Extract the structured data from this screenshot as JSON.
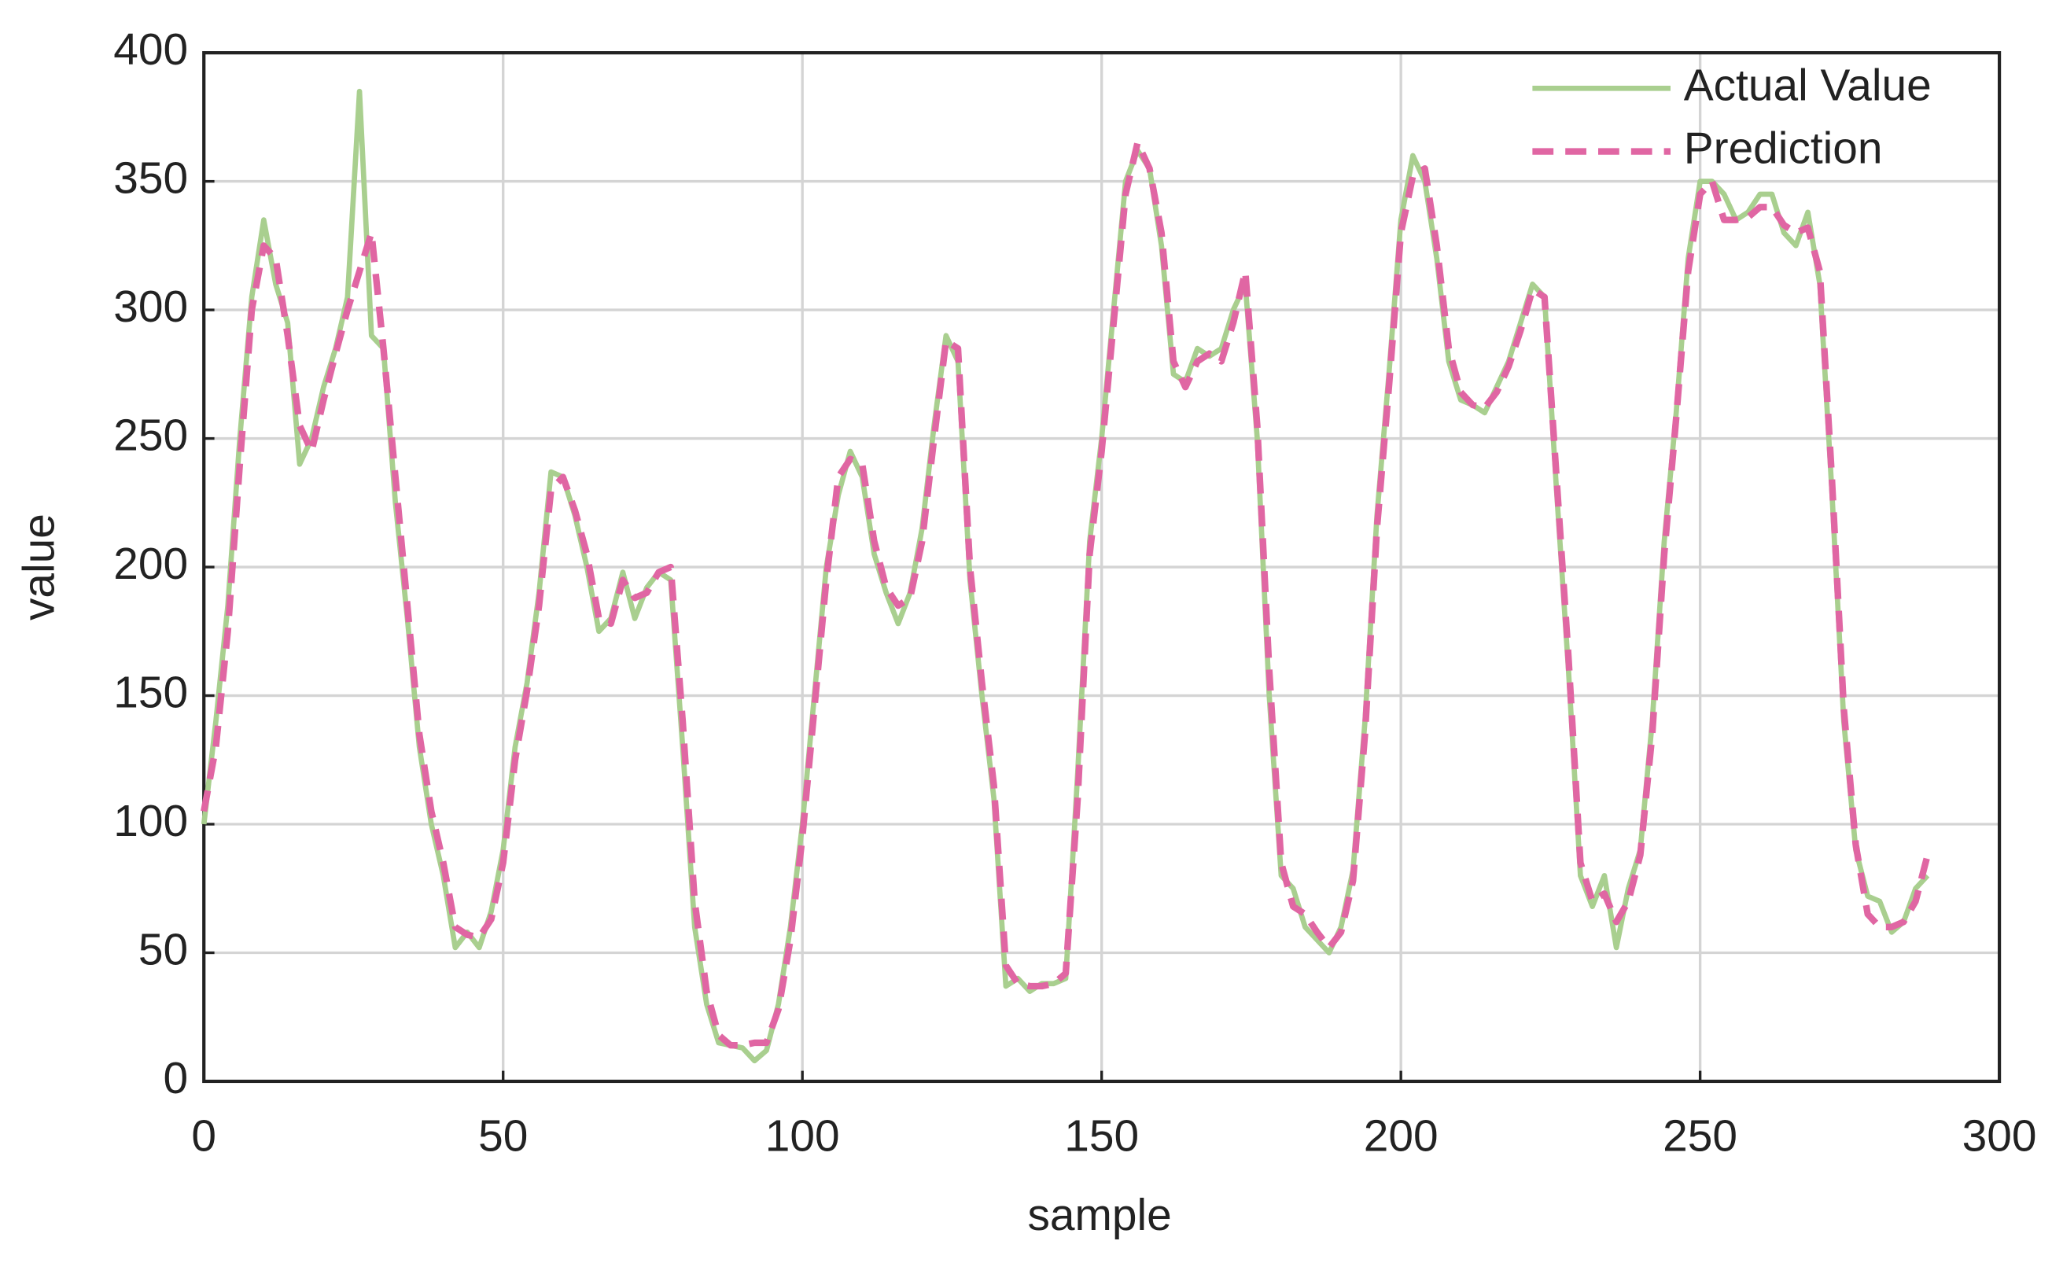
{
  "chart_data": {
    "type": "line",
    "xlabel": "sample",
    "ylabel": "value",
    "x": [
      0,
      2,
      4,
      6,
      8,
      10,
      12,
      14,
      16,
      18,
      20,
      22,
      24,
      26,
      28,
      30,
      32,
      34,
      36,
      38,
      40,
      42,
      44,
      46,
      48,
      50,
      52,
      54,
      56,
      58,
      60,
      62,
      64,
      66,
      68,
      70,
      72,
      74,
      76,
      78,
      80,
      82,
      84,
      86,
      88,
      90,
      92,
      94,
      96,
      98,
      100,
      102,
      104,
      106,
      108,
      110,
      112,
      114,
      116,
      118,
      120,
      122,
      124,
      126,
      128,
      130,
      132,
      134,
      136,
      138,
      140,
      142,
      144,
      146,
      148,
      150,
      152,
      154,
      156,
      158,
      160,
      162,
      164,
      166,
      168,
      170,
      172,
      174,
      176,
      178,
      180,
      182,
      184,
      186,
      188,
      190,
      192,
      194,
      196,
      198,
      200,
      202,
      204,
      206,
      208,
      210,
      212,
      214,
      216,
      218,
      220,
      222,
      224,
      226,
      228,
      230,
      232,
      234,
      236,
      238,
      240,
      242,
      244,
      246,
      248,
      250,
      252,
      254,
      256,
      258,
      260,
      262,
      264,
      266,
      268,
      270,
      272,
      274,
      276,
      278,
      280,
      282,
      284,
      286,
      288
    ],
    "series": [
      {
        "name": "Actual Value",
        "color": "#a9cf8f",
        "dash": false,
        "values": [
          100,
          140,
          185,
          250,
          305,
          335,
          310,
          295,
          240,
          250,
          270,
          285,
          305,
          385,
          290,
          285,
          225,
          180,
          130,
          100,
          80,
          52,
          58,
          52,
          66,
          90,
          130,
          155,
          190,
          237,
          235,
          220,
          200,
          175,
          180,
          198,
          180,
          192,
          198,
          195,
          130,
          60,
          30,
          15,
          14,
          13,
          8,
          12,
          30,
          60,
          100,
          150,
          200,
          228,
          245,
          235,
          205,
          190,
          178,
          190,
          215,
          255,
          290,
          280,
          195,
          150,
          110,
          37,
          40,
          35,
          38,
          38,
          40,
          120,
          210,
          250,
          300,
          350,
          362,
          355,
          325,
          275,
          272,
          285,
          282,
          285,
          300,
          310,
          250,
          150,
          80,
          75,
          60,
          55,
          50,
          60,
          82,
          140,
          220,
          275,
          335,
          360,
          350,
          320,
          280,
          265,
          263,
          260,
          270,
          280,
          295,
          310,
          305,
          230,
          160,
          80,
          68,
          80,
          52,
          75,
          90,
          140,
          210,
          260,
          320,
          350,
          350,
          345,
          335,
          338,
          345,
          345,
          330,
          325,
          338,
          310,
          230,
          140,
          90,
          72,
          70,
          58,
          62,
          75,
          80
        ]
      },
      {
        "name": "Prediction",
        "color": "#e066a3",
        "dash": true,
        "values": [
          105,
          130,
          175,
          240,
          300,
          325,
          320,
          290,
          255,
          245,
          265,
          283,
          300,
          315,
          330,
          285,
          235,
          185,
          135,
          105,
          85,
          60,
          57,
          56,
          63,
          85,
          125,
          152,
          185,
          230,
          235,
          222,
          205,
          180,
          178,
          195,
          188,
          190,
          198,
          200,
          140,
          70,
          35,
          18,
          14,
          14,
          15,
          15,
          28,
          55,
          95,
          145,
          195,
          235,
          242,
          240,
          210,
          192,
          185,
          188,
          210,
          250,
          288,
          285,
          200,
          155,
          115,
          45,
          38,
          37,
          37,
          38,
          42,
          110,
          205,
          245,
          295,
          345,
          365,
          355,
          330,
          280,
          270,
          280,
          283,
          280,
          295,
          315,
          255,
          160,
          85,
          68,
          65,
          58,
          52,
          58,
          78,
          135,
          215,
          270,
          330,
          352,
          355,
          325,
          285,
          268,
          263,
          262,
          268,
          278,
          292,
          308,
          305,
          235,
          165,
          85,
          70,
          73,
          62,
          70,
          88,
          135,
          205,
          258,
          315,
          345,
          350,
          335,
          335,
          336,
          340,
          340,
          333,
          330,
          332,
          315,
          235,
          145,
          92,
          65,
          60,
          60,
          62,
          70,
          88
        ]
      }
    ],
    "xlim": [
      0,
      300
    ],
    "xticks": [
      0,
      50,
      100,
      150,
      200,
      250,
      300
    ],
    "ylim": [
      0,
      400
    ],
    "yticks": [
      0,
      50,
      100,
      150,
      200,
      250,
      300,
      350,
      400
    ],
    "grid": true,
    "legend": "upper right"
  }
}
